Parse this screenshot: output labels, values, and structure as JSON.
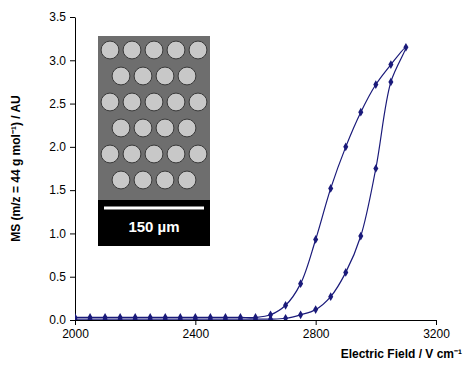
{
  "chart_data": {
    "type": "line",
    "x_label": "Electric Field / V cm⁻¹",
    "y_label": "MS (m/z = 44 g mol⁻¹) / AU",
    "inset_label": "150 µm",
    "x": [
      2000,
      2050,
      2100,
      2150,
      2200,
      2250,
      2300,
      2350,
      2400,
      2450,
      2500,
      2550,
      2600,
      2650,
      2700,
      2750,
      2800,
      2850,
      2900,
      2950,
      3000,
      3050,
      3100,
      3050,
      3000,
      2950,
      2900,
      2850,
      2800,
      2750,
      2700,
      2650,
      2600,
      2550,
      2500,
      2450,
      2400,
      2350,
      2300,
      2250,
      2200,
      2150,
      2100,
      2050,
      2000
    ],
    "values": [
      0.01,
      0.01,
      0.01,
      0.01,
      0.01,
      0.01,
      0.01,
      0.01,
      0.01,
      0.01,
      0.01,
      0.01,
      0.01,
      0.01,
      0.02,
      0.06,
      0.12,
      0.27,
      0.55,
      0.97,
      1.75,
      2.75,
      3.15,
      2.95,
      2.72,
      2.4,
      2.0,
      1.52,
      0.93,
      0.42,
      0.17,
      0.06,
      0.03,
      0.03,
      0.03,
      0.03,
      0.03,
      0.03,
      0.03,
      0.03,
      0.03,
      0.03,
      0.03,
      0.03,
      0.03
    ],
    "color": "#1a1a7a",
    "marker": "diamond",
    "line_style": "solid",
    "grid": false,
    "xlim": [
      2000,
      3200
    ],
    "xticks": [
      2000,
      2400,
      2800,
      3200
    ],
    "ylim": [
      0,
      3.5
    ],
    "yticks": [
      {
        "value": 0,
        "label": "0.0"
      },
      {
        "value": 0.5,
        "label": "0.5"
      },
      {
        "value": 1,
        "label": "1.0"
      },
      {
        "value": 1.5,
        "label": "1.5"
      },
      {
        "value": 2,
        "label": "2.0"
      },
      {
        "value": 2.5,
        "label": "2.5"
      },
      {
        "value": 3,
        "label": "3.0"
      },
      {
        "value": 3.5,
        "label": "3.5"
      }
    ]
  }
}
